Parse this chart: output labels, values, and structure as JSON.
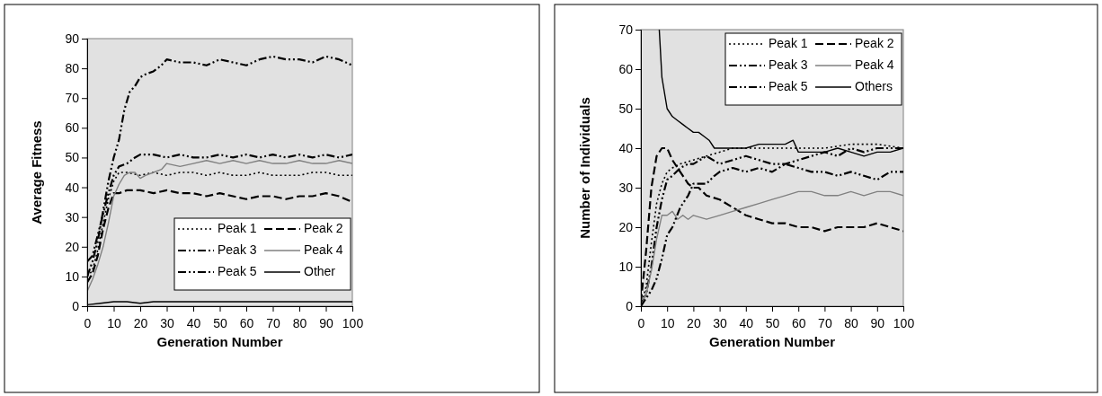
{
  "chart_data": [
    {
      "type": "line",
      "xlabel": "Generation Number",
      "ylabel": "Average Fitness",
      "xlim": [
        0,
        100
      ],
      "ylim": [
        0,
        90
      ],
      "xticks": [
        0,
        10,
        20,
        30,
        40,
        50,
        60,
        70,
        80,
        90,
        100
      ],
      "yticks": [
        0,
        10,
        20,
        30,
        40,
        50,
        60,
        70,
        80,
        90
      ],
      "grid": false,
      "legend": "bottom right",
      "series": [
        {
          "name": "Peak 1",
          "color": "#000000",
          "line_style": "dotted",
          "x": [
            0,
            2,
            4,
            6,
            8,
            10,
            12,
            15,
            20,
            25,
            30,
            35,
            40,
            45,
            50,
            55,
            60,
            65,
            70,
            75,
            80,
            85,
            90,
            95,
            100
          ],
          "values": [
            10,
            12,
            19,
            28,
            36,
            42,
            45,
            45,
            44,
            45,
            44,
            45,
            45,
            44,
            45,
            44,
            44,
            45,
            44,
            44,
            44,
            45,
            45,
            44,
            44
          ]
        },
        {
          "name": "Peak 2",
          "color": "#000000",
          "line_style": "dashed",
          "x": [
            0,
            2,
            4,
            6,
            8,
            10,
            12,
            15,
            20,
            25,
            30,
            35,
            40,
            45,
            50,
            55,
            60,
            65,
            70,
            75,
            80,
            85,
            90,
            95,
            100
          ],
          "values": [
            8,
            11,
            17,
            26,
            33,
            38,
            38,
            39,
            39,
            38,
            39,
            38,
            38,
            37,
            38,
            37,
            36,
            37,
            37,
            36,
            37,
            37,
            38,
            37,
            35
          ]
        },
        {
          "name": "Peak 3",
          "color": "#000000",
          "line_style": "dashdot",
          "x": [
            0,
            2,
            4,
            6,
            8,
            10,
            12,
            14,
            16,
            18,
            20,
            22,
            25,
            28,
            30,
            35,
            40,
            45,
            50,
            55,
            60,
            65,
            70,
            75,
            80,
            85,
            90,
            95,
            100
          ],
          "values": [
            10,
            15,
            22,
            32,
            42,
            50,
            56,
            66,
            72,
            74,
            77,
            78,
            79,
            81,
            83,
            82,
            82,
            81,
            83,
            82,
            81,
            83,
            84,
            83,
            83,
            82,
            84,
            83,
            81
          ]
        },
        {
          "name": "Peak 4",
          "color": "#808080",
          "line_style": "solid",
          "x": [
            0,
            2,
            4,
            6,
            8,
            10,
            12,
            14,
            16,
            18,
            20,
            22,
            25,
            28,
            30,
            35,
            40,
            45,
            50,
            55,
            60,
            65,
            70,
            75,
            80,
            85,
            90,
            95,
            100
          ],
          "values": [
            5,
            9,
            14,
            20,
            28,
            37,
            41,
            44,
            45,
            45,
            43,
            44,
            45,
            46,
            48,
            47,
            48,
            49,
            48,
            49,
            48,
            49,
            48,
            48,
            49,
            48,
            48,
            49,
            48
          ]
        },
        {
          "name": "Peak 5",
          "color": "#000000",
          "line_style": "dashdot",
          "x": [
            0,
            2,
            4,
            6,
            8,
            10,
            12,
            15,
            18,
            20,
            25,
            30,
            35,
            40,
            45,
            50,
            55,
            60,
            65,
            70,
            75,
            80,
            85,
            90,
            95,
            100
          ],
          "values": [
            15,
            17,
            24,
            31,
            38,
            44,
            47,
            48,
            50,
            51,
            51,
            50,
            51,
            50,
            50,
            51,
            50,
            51,
            50,
            51,
            50,
            51,
            50,
            51,
            50,
            51
          ]
        },
        {
          "name": "Other",
          "color": "#000000",
          "line_style": "solid",
          "x": [
            0,
            5,
            10,
            15,
            20,
            25,
            30,
            40,
            50,
            60,
            70,
            80,
            90,
            100
          ],
          "values": [
            0.5,
            1,
            1.5,
            1.5,
            1,
            1.5,
            1.5,
            1.5,
            1.5,
            1.5,
            1.5,
            1.5,
            1.5,
            1.5
          ]
        }
      ]
    },
    {
      "type": "line",
      "xlabel": "Generation Number",
      "ylabel": "Number of Individuals",
      "xlim": [
        0,
        100
      ],
      "ylim": [
        0,
        70
      ],
      "xticks": [
        0,
        10,
        20,
        30,
        40,
        50,
        60,
        70,
        80,
        90,
        100
      ],
      "yticks": [
        0,
        10,
        20,
        30,
        40,
        50,
        60,
        70
      ],
      "grid": false,
      "legend": "top right",
      "series": [
        {
          "name": "Peak 1",
          "color": "#000000",
          "line_style": "dotted",
          "x": [
            0,
            2,
            4,
            6,
            8,
            10,
            12,
            15,
            20,
            25,
            30,
            35,
            40,
            50,
            60,
            70,
            80,
            90,
            100
          ],
          "values": [
            0,
            5,
            16,
            26,
            31,
            34,
            35,
            36,
            37,
            38,
            39,
            40,
            40,
            40,
            40,
            40,
            41,
            41,
            40
          ]
        },
        {
          "name": "Peak 2",
          "color": "#000000",
          "line_style": "dashed",
          "x": [
            0,
            2,
            4,
            6,
            8,
            10,
            12,
            14,
            16,
            18,
            20,
            22,
            25,
            30,
            35,
            40,
            45,
            50,
            55,
            60,
            65,
            70,
            75,
            80,
            85,
            90,
            95,
            100
          ],
          "values": [
            1,
            14,
            30,
            38,
            40,
            40,
            37,
            35,
            33,
            31,
            30,
            30,
            28,
            27,
            25,
            23,
            22,
            21,
            21,
            20,
            20,
            19,
            20,
            20,
            20,
            21,
            20,
            19
          ]
        },
        {
          "name": "Peak 3",
          "color": "#000000",
          "line_style": "dashdot",
          "x": [
            0,
            2,
            4,
            6,
            8,
            10,
            12,
            15,
            18,
            20,
            25,
            30,
            35,
            40,
            45,
            50,
            55,
            60,
            65,
            70,
            75,
            80,
            85,
            90,
            95,
            100
          ],
          "values": [
            0,
            3,
            10,
            20,
            27,
            32,
            33,
            35,
            36,
            36,
            38,
            36,
            37,
            38,
            37,
            36,
            36,
            37,
            38,
            39,
            38,
            40,
            39,
            40,
            40,
            40
          ]
        },
        {
          "name": "Peak 4",
          "color": "#808080",
          "line_style": "solid",
          "x": [
            0,
            2,
            4,
            6,
            8,
            10,
            12,
            14,
            16,
            18,
            20,
            25,
            30,
            35,
            40,
            45,
            50,
            55,
            60,
            65,
            70,
            75,
            80,
            85,
            90,
            95,
            100
          ],
          "values": [
            0,
            3,
            9,
            17,
            23,
            23,
            24,
            22,
            23,
            22,
            23,
            22,
            23,
            24,
            25,
            26,
            27,
            28,
            29,
            29,
            28,
            28,
            29,
            28,
            29,
            29,
            28
          ]
        },
        {
          "name": "Peak 5",
          "color": "#000000",
          "line_style": "dashdot",
          "x": [
            0,
            2,
            4,
            6,
            8,
            10,
            12,
            15,
            18,
            20,
            22,
            25,
            28,
            30,
            35,
            40,
            45,
            50,
            55,
            60,
            65,
            70,
            75,
            80,
            85,
            90,
            95,
            100
          ],
          "values": [
            0,
            2,
            4,
            7,
            12,
            18,
            20,
            25,
            28,
            31,
            31,
            31,
            33,
            34,
            35,
            34,
            35,
            34,
            36,
            35,
            34,
            34,
            33,
            34,
            33,
            32,
            34,
            34
          ]
        },
        {
          "name": "Others",
          "color": "#000000",
          "line_style": "solid",
          "x": [
            7,
            8,
            10,
            12,
            14,
            16,
            18,
            20,
            22,
            24,
            26,
            28,
            30,
            35,
            40,
            45,
            50,
            55,
            58,
            60,
            65,
            70,
            75,
            80,
            85,
            90,
            95,
            100
          ],
          "values": [
            70,
            58,
            50,
            48,
            47,
            46,
            45,
            44,
            44,
            43,
            42,
            40,
            40,
            40,
            40,
            41,
            41,
            41,
            42,
            39,
            39,
            39,
            40,
            39,
            38,
            39,
            39,
            40
          ]
        }
      ]
    }
  ]
}
